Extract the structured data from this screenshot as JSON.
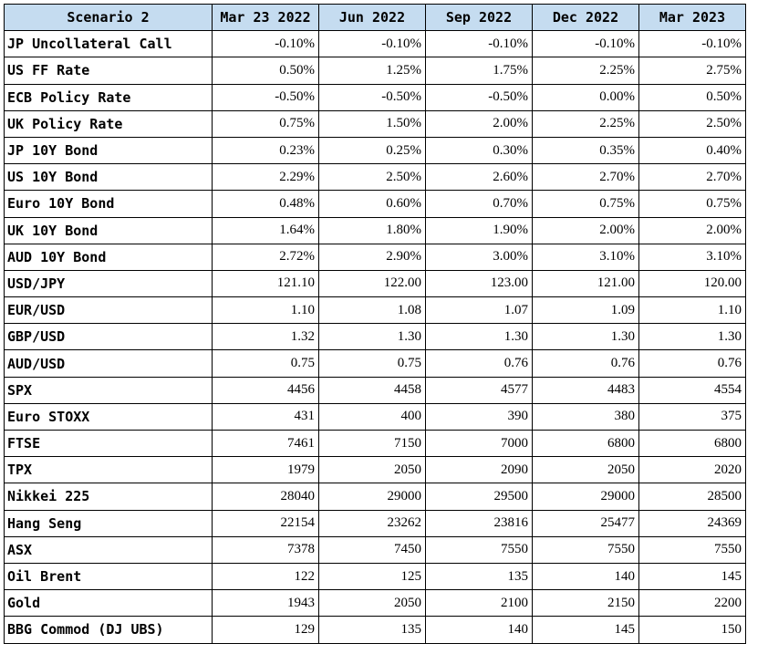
{
  "table": {
    "headers": [
      "Scenario 2",
      "Mar 23 2022",
      "Jun 2022",
      "Sep 2022",
      "Dec 2022",
      "Mar 2023"
    ],
    "rows": [
      {
        "label": "JP Uncollateral Call",
        "values": [
          "-0.10%",
          "-0.10%",
          "-0.10%",
          "-0.10%",
          "-0.10%"
        ]
      },
      {
        "label": "US FF Rate",
        "values": [
          "0.50%",
          "1.25%",
          "1.75%",
          "2.25%",
          "2.75%"
        ]
      },
      {
        "label": "ECB Policy Rate",
        "values": [
          "-0.50%",
          "-0.50%",
          "-0.50%",
          "0.00%",
          "0.50%"
        ]
      },
      {
        "label": "UK Policy Rate",
        "values": [
          "0.75%",
          "1.50%",
          "2.00%",
          "2.25%",
          "2.50%"
        ]
      },
      {
        "label": "JP 10Y Bond",
        "values": [
          "0.23%",
          "0.25%",
          "0.30%",
          "0.35%",
          "0.40%"
        ]
      },
      {
        "label": "US 10Y Bond",
        "values": [
          "2.29%",
          "2.50%",
          "2.60%",
          "2.70%",
          "2.70%"
        ]
      },
      {
        "label": "Euro 10Y Bond",
        "values": [
          "0.48%",
          "0.60%",
          "0.70%",
          "0.75%",
          "0.75%"
        ]
      },
      {
        "label": "UK 10Y Bond",
        "values": [
          "1.64%",
          "1.80%",
          "1.90%",
          "2.00%",
          "2.00%"
        ]
      },
      {
        "label": "AUD 10Y Bond",
        "values": [
          "2.72%",
          "2.90%",
          "3.00%",
          "3.10%",
          "3.10%"
        ]
      },
      {
        "label": "USD/JPY",
        "values": [
          "121.10",
          "122.00",
          "123.00",
          "121.00",
          "120.00"
        ]
      },
      {
        "label": "EUR/USD",
        "values": [
          "1.10",
          "1.08",
          "1.07",
          "1.09",
          "1.10"
        ]
      },
      {
        "label": "GBP/USD",
        "values": [
          "1.32",
          "1.30",
          "1.30",
          "1.30",
          "1.30"
        ]
      },
      {
        "label": "AUD/USD",
        "values": [
          "0.75",
          "0.75",
          "0.76",
          "0.76",
          "0.76"
        ]
      },
      {
        "label": "SPX",
        "values": [
          "4456",
          "4458",
          "4577",
          "4483",
          "4554"
        ]
      },
      {
        "label": "Euro STOXX",
        "values": [
          "431",
          "400",
          "390",
          "380",
          "375"
        ]
      },
      {
        "label": "FTSE",
        "values": [
          "7461",
          "7150",
          "7000",
          "6800",
          "6800"
        ]
      },
      {
        "label": "TPX",
        "values": [
          "1979",
          "2050",
          "2090",
          "2050",
          "2020"
        ]
      },
      {
        "label": "Nikkei 225",
        "values": [
          "28040",
          "29000",
          "29500",
          "29000",
          "28500"
        ]
      },
      {
        "label": "Hang Seng",
        "values": [
          "22154",
          "23262",
          "23816",
          "25477",
          "24369"
        ]
      },
      {
        "label": "ASX",
        "values": [
          "7378",
          "7450",
          "7550",
          "7550",
          "7550"
        ]
      },
      {
        "label": "Oil Brent",
        "values": [
          "122",
          "125",
          "135",
          "140",
          "145"
        ]
      },
      {
        "label": "Gold",
        "values": [
          "1943",
          "2050",
          "2100",
          "2150",
          "2200"
        ]
      },
      {
        "label": "BBG Commod (DJ UBS)",
        "values": [
          "129",
          "135",
          "140",
          "145",
          "150"
        ]
      }
    ]
  },
  "colors": {
    "header_bg": "#c5dcf0",
    "border": "#000000"
  }
}
